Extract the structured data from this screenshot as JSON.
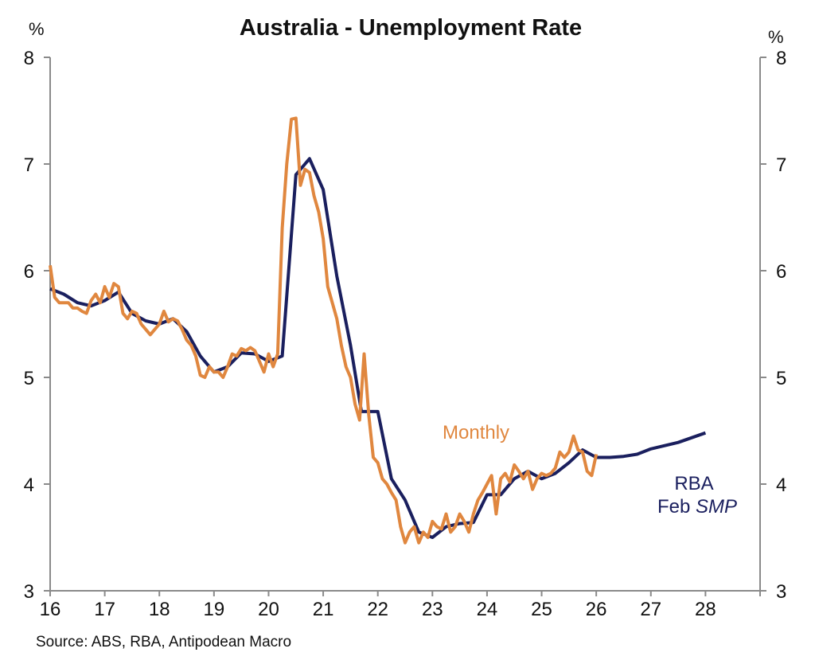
{
  "chart_data": {
    "type": "line",
    "title": "Australia - Unemployment Rate",
    "ylabel_left": "%",
    "ylabel_right": "%",
    "source": "Source: ABS, RBA, Antipodean Macro",
    "xlim": [
      16,
      29
    ],
    "ylim": [
      3,
      8
    ],
    "x_ticks": [
      16,
      17,
      18,
      19,
      20,
      21,
      22,
      23,
      24,
      25,
      26,
      27,
      28
    ],
    "x_tick_labels": [
      "16",
      "17",
      "18",
      "19",
      "20",
      "21",
      "22",
      "23",
      "24",
      "25",
      "26",
      "27",
      "28"
    ],
    "y_ticks": [
      3,
      4,
      5,
      6,
      7,
      8
    ],
    "y_tick_labels": [
      "3",
      "4",
      "5",
      "6",
      "7",
      "8"
    ],
    "grid": false,
    "series": [
      {
        "name": "RBA Feb SMP",
        "label_line1": "RBA",
        "label_line2_prefix": "Feb ",
        "label_line2_italic": "SMP",
        "color": "#1a1f5e",
        "x": [
          16.0,
          16.25,
          16.5,
          16.75,
          17.0,
          17.25,
          17.5,
          17.75,
          18.0,
          18.25,
          18.5,
          18.75,
          19.0,
          19.25,
          19.5,
          19.75,
          20.0,
          20.25,
          20.5,
          20.75,
          21.0,
          21.25,
          21.5,
          21.7,
          22.0,
          22.25,
          22.5,
          22.75,
          23.0,
          23.25,
          23.5,
          23.75,
          24.0,
          24.25,
          24.5,
          24.75,
          25.0,
          25.25,
          25.5,
          25.75,
          26.0,
          26.25,
          26.5,
          26.75,
          27.0,
          27.5,
          28.0
        ],
        "values": [
          5.83,
          5.78,
          5.7,
          5.67,
          5.72,
          5.8,
          5.6,
          5.53,
          5.5,
          5.55,
          5.43,
          5.2,
          5.05,
          5.1,
          5.23,
          5.22,
          5.15,
          5.2,
          6.9,
          7.05,
          6.76,
          5.95,
          5.3,
          4.68,
          4.68,
          4.05,
          3.85,
          3.55,
          3.5,
          3.6,
          3.63,
          3.64,
          3.9,
          3.9,
          4.05,
          4.12,
          4.05,
          4.1,
          4.2,
          4.32,
          4.25,
          4.25,
          4.26,
          4.28,
          4.33,
          4.39,
          4.48
        ]
      },
      {
        "name": "Monthly",
        "color": "#e0873f",
        "x_start": 16.0,
        "x_step_months": 1,
        "values": [
          6.05,
          5.75,
          5.7,
          5.7,
          5.7,
          5.65,
          5.65,
          5.62,
          5.6,
          5.72,
          5.78,
          5.7,
          5.85,
          5.75,
          5.88,
          5.85,
          5.6,
          5.55,
          5.62,
          5.6,
          5.5,
          5.45,
          5.4,
          5.45,
          5.5,
          5.62,
          5.52,
          5.55,
          5.53,
          5.45,
          5.35,
          5.3,
          5.2,
          5.02,
          5.0,
          5.1,
          5.05,
          5.05,
          5.0,
          5.1,
          5.22,
          5.2,
          5.27,
          5.25,
          5.28,
          5.25,
          5.15,
          5.05,
          5.22,
          5.1,
          5.22,
          6.4,
          7.0,
          7.42,
          7.43,
          6.8,
          6.95,
          6.92,
          6.7,
          6.55,
          6.3,
          5.85,
          5.7,
          5.55,
          5.3,
          5.1,
          5.0,
          4.75,
          4.6,
          5.22,
          4.65,
          4.25,
          4.2,
          4.05,
          4.0,
          3.92,
          3.85,
          3.6,
          3.45,
          3.55,
          3.6,
          3.45,
          3.55,
          3.5,
          3.65,
          3.6,
          3.58,
          3.72,
          3.55,
          3.6,
          3.72,
          3.65,
          3.55,
          3.72,
          3.85,
          3.92,
          4.0,
          4.08,
          3.72,
          4.05,
          4.1,
          4.02,
          4.18,
          4.12,
          4.05,
          4.12,
          3.95,
          4.05,
          4.1,
          4.08,
          4.1,
          4.15,
          4.3,
          4.25,
          4.3,
          4.45,
          4.32,
          4.3,
          4.12,
          4.08,
          4.28
        ]
      }
    ]
  }
}
